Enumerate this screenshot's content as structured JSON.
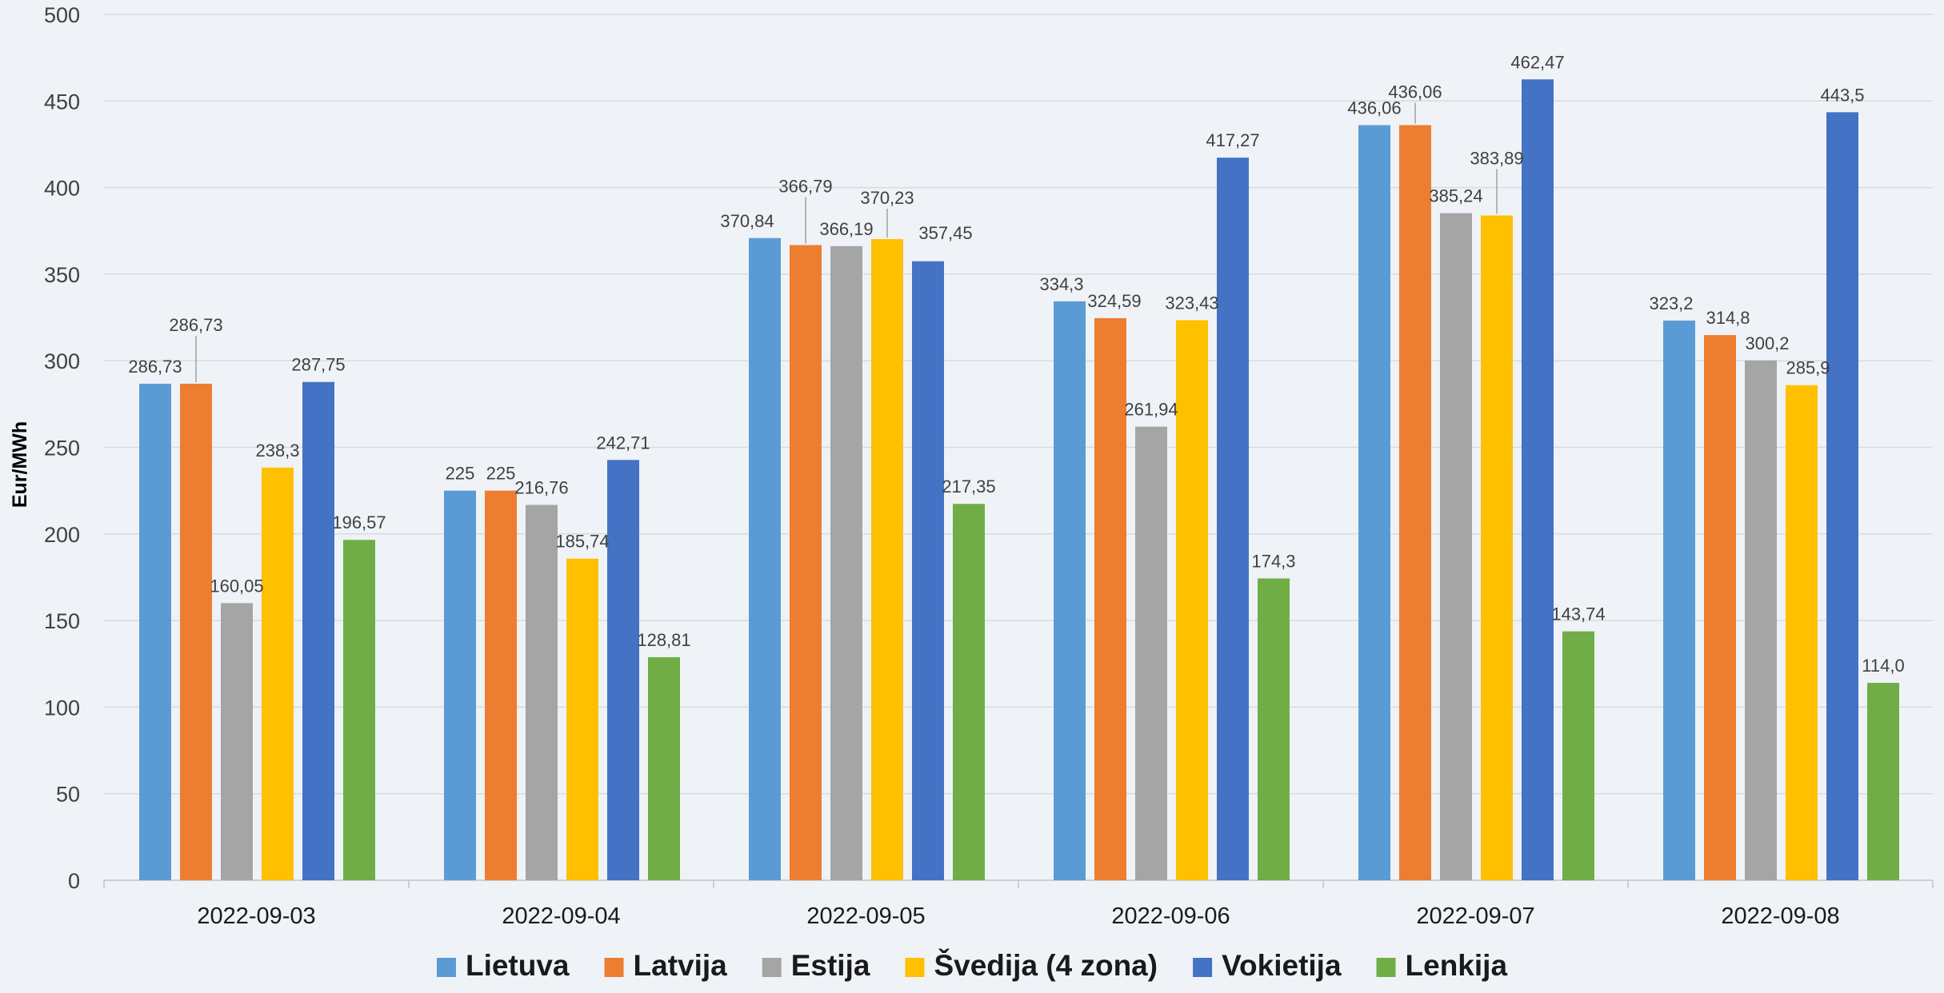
{
  "chart_data": {
    "type": "bar",
    "title": "",
    "xlabel": "",
    "ylabel": "Eur/MWh",
    "ylim": [
      0,
      500
    ],
    "yticks": [
      "0",
      "50",
      "100",
      "150",
      "200",
      "250",
      "300",
      "350",
      "400",
      "450",
      "500"
    ],
    "grid": true,
    "legend_position": "bottom",
    "categories": [
      "2022-09-03",
      "2022-09-04",
      "2022-09-05",
      "2022-09-06",
      "2022-09-07",
      "2022-09-08"
    ],
    "series": [
      {
        "name": "Lietuva",
        "color": "#5b9bd5",
        "values": [
          286.73,
          225,
          370.84,
          334.3,
          436.06,
          323.2
        ],
        "labels": [
          "286,73",
          "225",
          "370,84",
          "334,3",
          "436,06",
          "323,2"
        ]
      },
      {
        "name": "Latvija",
        "color": "#ed7d31",
        "values": [
          286.73,
          225,
          366.79,
          324.59,
          436.06,
          314.8
        ],
        "labels": [
          "286,73",
          "225",
          "366,79",
          "324,59",
          "436,06",
          "314,8"
        ]
      },
      {
        "name": "Estija",
        "color": "#a5a5a5",
        "values": [
          160.05,
          216.76,
          366.19,
          261.94,
          385.24,
          300.2
        ],
        "labels": [
          "160,05",
          "216,76",
          "366,19",
          "261,94",
          "385,24",
          "300,2"
        ]
      },
      {
        "name": "Švedija (4 zona)",
        "color": "#ffc000",
        "values": [
          238.3,
          185.74,
          370.23,
          323.43,
          383.89,
          285.9
        ],
        "labels": [
          "238,3",
          "185,74",
          "370,23",
          "323,43",
          "383,89",
          "285,9"
        ]
      },
      {
        "name": "Vokietija",
        "color": "#4472c4",
        "values": [
          287.75,
          242.71,
          357.45,
          417.27,
          462.47,
          443.5
        ],
        "labels": [
          "287,75",
          "242,71",
          "357,45",
          "417,27",
          "462,47",
          "443,5"
        ]
      },
      {
        "name": "Lenkija",
        "color": "#70ad47",
        "values": [
          196.57,
          128.81,
          217.35,
          174.3,
          143.74,
          114.0
        ],
        "labels": [
          "196,57",
          "128,81",
          "217,35",
          "174,3",
          "143,74",
          "114,0"
        ]
      }
    ]
  }
}
